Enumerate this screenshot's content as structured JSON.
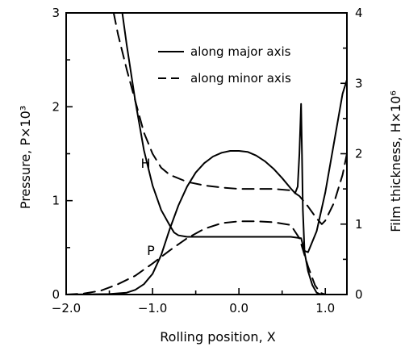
{
  "chart_data": {
    "type": "line",
    "xlabel": "Rolling position, X",
    "ylabel_left": "Pressure, P×10³",
    "ylabel_right": "Film thickness, H×10⁶",
    "xlim": [
      -2.0,
      1.25
    ],
    "ylim_left": [
      0,
      3
    ],
    "ylim_right": [
      0,
      4
    ],
    "x_ticks": [
      {
        "value": -2.0,
        "label": "−2.0"
      },
      {
        "value": -1.0,
        "label": "−1.0"
      },
      {
        "value": 0.0,
        "label": "0.0"
      },
      {
        "value": 1.0,
        "label": "1.0"
      }
    ],
    "y_left_ticks": [
      {
        "value": 0,
        "label": "0"
      },
      {
        "value": 1,
        "label": "1"
      },
      {
        "value": 2,
        "label": "2"
      },
      {
        "value": 3,
        "label": "3"
      }
    ],
    "y_right_ticks": [
      {
        "value": 0,
        "label": "0"
      },
      {
        "value": 1,
        "label": "1"
      },
      {
        "value": 2,
        "label": "2"
      },
      {
        "value": 3,
        "label": "3"
      },
      {
        "value": 4,
        "label": "4"
      }
    ],
    "grid": false,
    "legend": {
      "placement": "top-right",
      "entries": [
        {
          "label": "along major axis",
          "style": "solid"
        },
        {
          "label": "along minor axis",
          "style": "dashed"
        }
      ]
    },
    "annotations": [
      {
        "text": "H",
        "x": -1.08,
        "y": 1.35,
        "axis": "left"
      },
      {
        "text": "P",
        "x": -1.02,
        "y": 0.42,
        "axis": "left"
      }
    ],
    "series": [
      {
        "quantity": "pressure",
        "axis": "left",
        "style": "solid",
        "points": [
          [
            -2.0,
            0
          ],
          [
            -1.5,
            0.005
          ],
          [
            -1.3,
            0.02
          ],
          [
            -1.2,
            0.05
          ],
          [
            -1.1,
            0.11
          ],
          [
            -1.0,
            0.22
          ],
          [
            -0.9,
            0.42
          ],
          [
            -0.8,
            0.7
          ],
          [
            -0.7,
            0.95
          ],
          [
            -0.6,
            1.15
          ],
          [
            -0.5,
            1.3
          ],
          [
            -0.4,
            1.4
          ],
          [
            -0.3,
            1.47
          ],
          [
            -0.2,
            1.51
          ],
          [
            -0.1,
            1.53
          ],
          [
            0.0,
            1.53
          ],
          [
            0.1,
            1.52
          ],
          [
            0.2,
            1.48
          ],
          [
            0.3,
            1.42
          ],
          [
            0.4,
            1.34
          ],
          [
            0.5,
            1.24
          ],
          [
            0.6,
            1.13
          ],
          [
            0.65,
            1.08
          ],
          [
            0.68,
            1.15
          ],
          [
            0.7,
            1.5
          ],
          [
            0.72,
            2.03
          ],
          [
            0.73,
            1.5
          ],
          [
            0.74,
            0.9
          ],
          [
            0.76,
            0.45
          ],
          [
            0.8,
            0.25
          ],
          [
            0.85,
            0.1
          ],
          [
            0.9,
            0.02
          ],
          [
            0.95,
            0
          ]
        ]
      },
      {
        "quantity": "pressure",
        "axis": "left",
        "style": "dashed",
        "points": [
          [
            -2.0,
            0
          ],
          [
            -1.8,
            0.01
          ],
          [
            -1.6,
            0.04
          ],
          [
            -1.4,
            0.11
          ],
          [
            -1.2,
            0.2
          ],
          [
            -1.0,
            0.33
          ],
          [
            -0.8,
            0.47
          ],
          [
            -0.6,
            0.6
          ],
          [
            -0.4,
            0.7
          ],
          [
            -0.2,
            0.76
          ],
          [
            0.0,
            0.78
          ],
          [
            0.2,
            0.78
          ],
          [
            0.4,
            0.77
          ],
          [
            0.6,
            0.74
          ],
          [
            0.7,
            0.6
          ],
          [
            0.8,
            0.3
          ],
          [
            0.88,
            0.1
          ],
          [
            0.94,
            0.02
          ],
          [
            1.0,
            0
          ]
        ]
      },
      {
        "quantity": "film-thickness",
        "axis": "right",
        "style": "solid",
        "points": [
          [
            -1.35,
            4.0
          ],
          [
            -1.3,
            3.55
          ],
          [
            -1.2,
            2.75
          ],
          [
            -1.1,
            2.05
          ],
          [
            -1.0,
            1.55
          ],
          [
            -0.9,
            1.2
          ],
          [
            -0.8,
            0.98
          ],
          [
            -0.75,
            0.88
          ],
          [
            -0.7,
            0.84
          ],
          [
            -0.6,
            0.82
          ],
          [
            -0.2,
            0.82
          ],
          [
            0.2,
            0.82
          ],
          [
            0.6,
            0.82
          ],
          [
            0.72,
            0.8
          ],
          [
            0.76,
            0.62
          ],
          [
            0.8,
            0.6
          ],
          [
            0.9,
            0.9
          ],
          [
            1.0,
            1.45
          ],
          [
            1.1,
            2.15
          ],
          [
            1.2,
            2.85
          ],
          [
            1.25,
            3.05
          ]
        ]
      },
      {
        "quantity": "film-thickness",
        "axis": "right",
        "style": "dashed",
        "points": [
          [
            -1.45,
            4.0
          ],
          [
            -1.4,
            3.7
          ],
          [
            -1.3,
            3.2
          ],
          [
            -1.2,
            2.75
          ],
          [
            -1.1,
            2.3
          ],
          [
            -1.0,
            2.0
          ],
          [
            -0.9,
            1.8
          ],
          [
            -0.8,
            1.7
          ],
          [
            -0.6,
            1.6
          ],
          [
            -0.4,
            1.55
          ],
          [
            -0.2,
            1.52
          ],
          [
            0.0,
            1.5
          ],
          [
            0.2,
            1.5
          ],
          [
            0.4,
            1.5
          ],
          [
            0.6,
            1.48
          ],
          [
            0.7,
            1.4
          ],
          [
            0.8,
            1.25
          ],
          [
            0.9,
            1.08
          ],
          [
            0.96,
            1.0
          ],
          [
            1.0,
            1.05
          ],
          [
            1.1,
            1.3
          ],
          [
            1.2,
            1.7
          ],
          [
            1.25,
            2.0
          ]
        ]
      }
    ]
  }
}
